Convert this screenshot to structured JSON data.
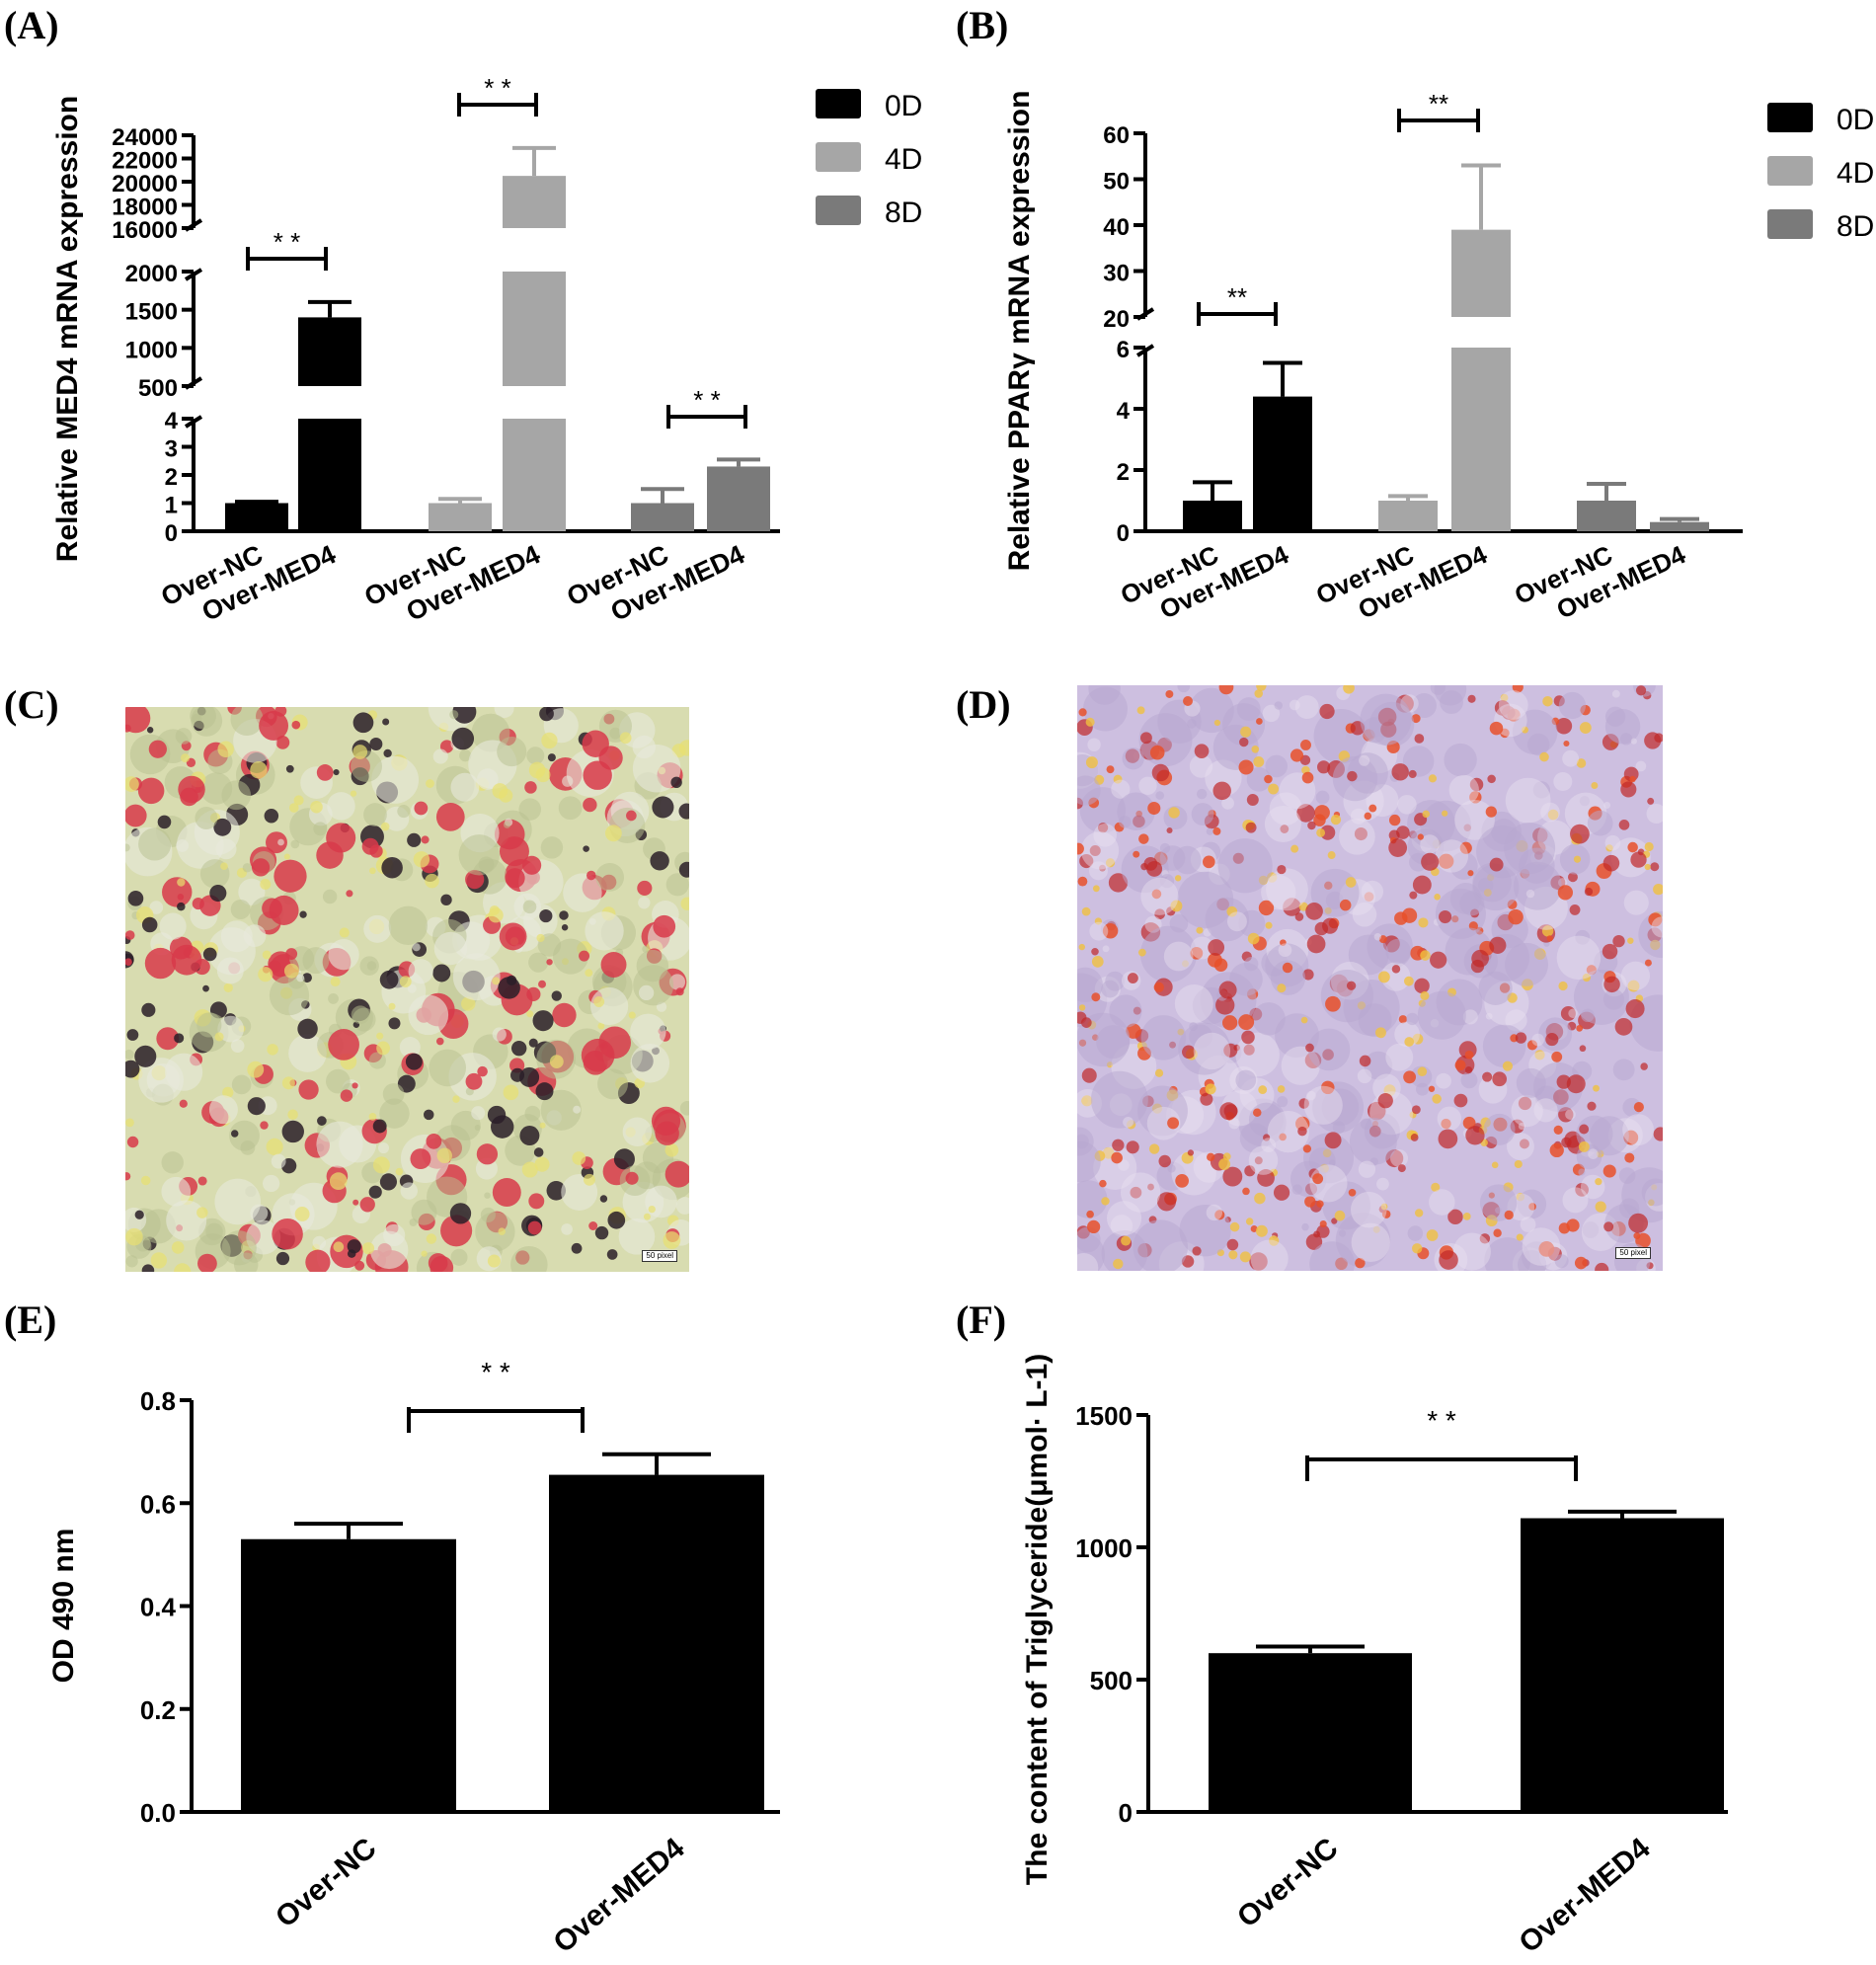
{
  "panels": {
    "A": "(A)",
    "B": "(B)",
    "C": "(C)",
    "D": "(D)",
    "E": "(E)",
    "F": "(F)"
  },
  "images": {
    "C": {
      "scale_label": "50 pixel",
      "tint": "#d8dcb0"
    },
    "D": {
      "scale_label": "50 pixel",
      "tint": "#cdbfe0"
    }
  },
  "chart_data": [
    {
      "id": "A",
      "type": "bar",
      "title": "",
      "ylabel": "Relative MED4 mRNA expression",
      "xlabel": "",
      "y_segments": [
        {
          "range": [
            0,
            4
          ],
          "ticks": [
            "0",
            "1",
            "2",
            "3",
            "4"
          ]
        },
        {
          "range": [
            500,
            2000
          ],
          "ticks": [
            "500",
            "1000",
            "1500",
            "2000"
          ]
        },
        {
          "range": [
            16000,
            24000
          ],
          "ticks": [
            "16000",
            "18000",
            "20000",
            "22000",
            "24000"
          ]
        }
      ],
      "groups": [
        {
          "legend": "0D",
          "color": "#000000",
          "bars": [
            {
              "label": "Over-NC",
              "value": 1.0,
              "error": 0.05
            },
            {
              "label": "Over-MED4",
              "value": 1400,
              "error": 200
            }
          ],
          "significance": "* *"
        },
        {
          "legend": "4D",
          "color": "#a6a6a6",
          "bars": [
            {
              "label": "Over-NC",
              "value": 1.0,
              "error": 0.15
            },
            {
              "label": "Over-MED4",
              "value": 20500,
              "error": 2400
            }
          ],
          "significance": "* *"
        },
        {
          "legend": "8D",
          "color": "#7a7a7a",
          "bars": [
            {
              "label": "Over-NC",
              "value": 1.0,
              "error": 0.5
            },
            {
              "label": "Over-MED4",
              "value": 2.3,
              "error": 0.25
            }
          ],
          "significance": "* *"
        }
      ],
      "legend": [
        "0D",
        "4D",
        "8D"
      ],
      "legend_position": "top-right"
    },
    {
      "id": "B",
      "type": "bar",
      "title": "",
      "ylabel": "Relative PPARγ mRNA expression",
      "xlabel": "",
      "y_segments": [
        {
          "range": [
            0,
            6
          ],
          "ticks": [
            "0",
            "2",
            "4",
            "6"
          ]
        },
        {
          "range": [
            20,
            60
          ],
          "ticks": [
            "20",
            "30",
            "40",
            "50",
            "60"
          ]
        }
      ],
      "groups": [
        {
          "legend": "0D",
          "color": "#000000",
          "bars": [
            {
              "label": "Over-NC",
              "value": 1.0,
              "error": 0.6
            },
            {
              "label": "Over-MED4",
              "value": 4.4,
              "error": 1.1
            }
          ],
          "significance": "**"
        },
        {
          "legend": "4D",
          "color": "#a6a6a6",
          "bars": [
            {
              "label": "Over-NC",
              "value": 1.0,
              "error": 0.15
            },
            {
              "label": "Over-MED4",
              "value": 39,
              "error": 14
            }
          ],
          "significance": "**"
        },
        {
          "legend": "8D",
          "color": "#7a7a7a",
          "bars": [
            {
              "label": "Over-NC",
              "value": 1.0,
              "error": 0.55
            },
            {
              "label": "Over-MED4",
              "value": 0.3,
              "error": 0.1
            }
          ],
          "significance": ""
        }
      ],
      "legend": [
        "0D",
        "4D",
        "8D"
      ],
      "legend_position": "top-right"
    },
    {
      "id": "E",
      "type": "bar",
      "title": "",
      "ylabel": "OD 490 nm",
      "xlabel": "",
      "ylim": [
        0,
        0.8
      ],
      "ticks": [
        "0.0",
        "0.2",
        "0.4",
        "0.6",
        "0.8"
      ],
      "bars": [
        {
          "label": "Over-NC",
          "value": 0.53,
          "error": 0.03
        },
        {
          "label": "Over-MED4",
          "value": 0.655,
          "error": 0.04
        }
      ],
      "significance": "* *"
    },
    {
      "id": "F",
      "type": "bar",
      "title": "",
      "ylabel": "The content of Triglyceride(μmol· L-1)",
      "xlabel": "",
      "ylim": [
        0,
        1500
      ],
      "ticks": [
        "0",
        "500",
        "1000",
        "1500"
      ],
      "bars": [
        {
          "label": "Over-NC",
          "value": 600,
          "error": 25
        },
        {
          "label": "Over-MED4",
          "value": 1110,
          "error": 25
        }
      ],
      "significance": "* *"
    }
  ]
}
